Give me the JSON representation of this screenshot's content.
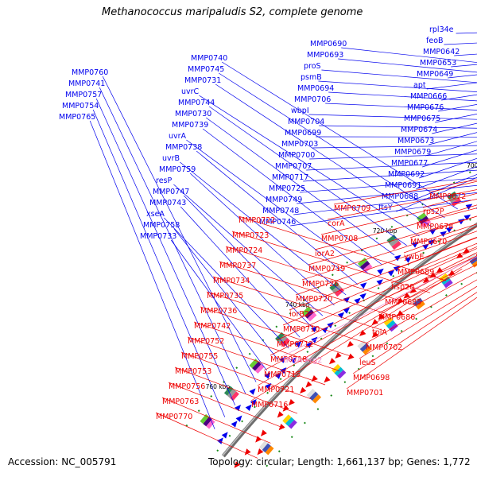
{
  "title": "Methanococcus maripaludis S2, complete genome",
  "footer": {
    "accession": "Accession: NC_005791",
    "summary": "Topology: circular; Length: 1,661,137 bp; Genes: 1,772"
  },
  "colors": {
    "forward": "#0000ee",
    "reverse": "#ee0000",
    "trna": "#ee88cc",
    "backbone": "#888888",
    "tick_green": "#1a8a1a"
  },
  "kbp_ticks": [
    "620 kbp",
    "640 kbp",
    "660 kbp",
    "680 kbp",
    "700 kbp",
    "720 kbp",
    "740 kbp",
    "760 kbp"
  ],
  "forward_labels": [
    "rpl34e",
    "feoB",
    "MMP0642",
    "MMP0653",
    "MMP0649",
    "apt",
    "MMP0666",
    "MMP0676",
    "MMP0675",
    "MMP0674",
    "MMP0673",
    "MMP0679",
    "MMP0677",
    "MMP0692",
    "MMP0691",
    "MMP0688",
    "ftsY",
    "MMP0690",
    "MMP0693",
    "proS",
    "psmB",
    "MMP0694",
    "MMP0706",
    "wbpI",
    "MMP0704",
    "MMP0699",
    "MMP0703",
    "MMP0700",
    "MMP0707",
    "MMP0717",
    "MMP0725",
    "MMP0749",
    "MMP0748",
    "MMP0746",
    "MMP0740",
    "MMP0745",
    "MMP0731",
    "uvrC",
    "MMP0744",
    "MMP0730",
    "MMP0739",
    "uvrA",
    "MMP0738",
    "uvrB",
    "MMP0759",
    "resP",
    "MMP0747",
    "MMP0743",
    "xseA",
    "MMP0758",
    "MMP0733",
    "MMP0760",
    "MMP0741",
    "MMP0757",
    "MMP0754",
    "MMP0765"
  ],
  "reverse_labels": [
    "MMP0672",
    "rps2P",
    "MMP0678",
    "MMP0670",
    "ywbE",
    "MMP0689",
    "hsp20",
    "MMP0685",
    "MMP0686",
    "tpiA",
    "MMP0702",
    "leuS",
    "MMP0698",
    "MMP0701",
    "MMP0709",
    "corA",
    "MMP0708",
    "iorA2",
    "MMP0719",
    "MMP0726",
    "MMP0720",
    "iorB2",
    "MMP0710",
    "MMP0712",
    "MMP0718",
    "MMP0715",
    "MMP0721",
    "MMP0716",
    "MMP0722",
    "MMP0723",
    "MMP0724",
    "MMP0737",
    "MMP0734",
    "MMP0735",
    "MMP0736",
    "MMP0742",
    "MMP0752",
    "MMP0755",
    "MMP0753",
    "MMP0756",
    "MMP0763",
    "MMP0770"
  ],
  "trna_labels": [
    "tRNA-Arg2"
  ]
}
